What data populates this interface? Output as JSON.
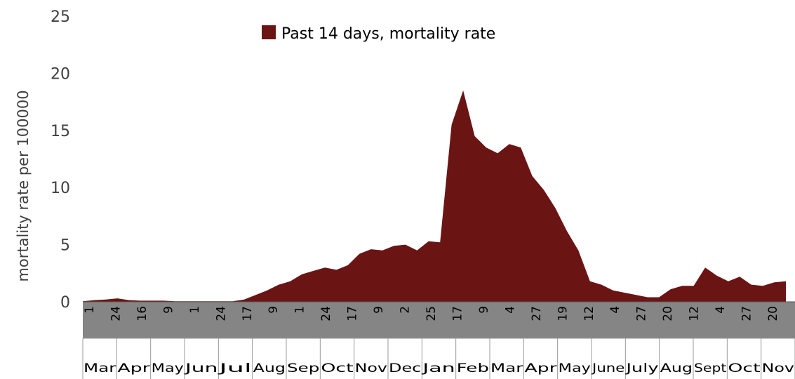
{
  "chart_data": {
    "type": "area",
    "ylabel": "mortality rate per 100000",
    "ylim": [
      0,
      25
    ],
    "yticks": [
      "0",
      "5",
      "10",
      "15",
      "20",
      "25"
    ],
    "legend": {
      "position": "top-center"
    },
    "series": [
      {
        "name": "Past 14 days, mortality rate",
        "color": "#6b1414",
        "values": [
          0.05,
          0.15,
          0.2,
          0.3,
          0.15,
          0.1,
          0.1,
          0.1,
          0.05,
          0.05,
          0.05,
          0.05,
          0.05,
          0.05,
          0.2,
          0.6,
          1.0,
          1.5,
          1.8,
          2.4,
          2.7,
          3.0,
          2.8,
          3.2,
          4.2,
          4.6,
          4.5,
          4.9,
          5.0,
          4.5,
          5.3,
          5.2,
          15.5,
          18.5,
          14.5,
          13.5,
          13.0,
          13.8,
          13.5,
          11.0,
          9.8,
          8.2,
          6.2,
          4.5,
          1.8,
          1.5,
          1.0,
          0.8,
          0.6,
          0.4,
          0.4,
          1.1,
          1.4,
          1.4,
          3.0,
          2.3,
          1.8,
          2.2,
          1.5,
          1.4,
          1.7,
          1.8
        ]
      }
    ],
    "day_ticks": [
      "1",
      "24",
      "16",
      "9",
      "1",
      "24",
      "17",
      "9",
      "1",
      "24",
      "17",
      "9",
      "2",
      "25",
      "17",
      "9",
      "4",
      "27",
      "19",
      "12",
      "4",
      "27",
      "20",
      "12",
      "4",
      "27",
      "20"
    ],
    "month_ticks": [
      "Mar",
      "Apr",
      "May",
      "Jun",
      "Jul",
      "Aug",
      "Sep",
      "Oct",
      "Nov",
      "Dec",
      "Jan",
      "Feb",
      "Mar",
      "Apr",
      "May",
      "June",
      "July",
      "Aug",
      "Sept",
      "Oct",
      "Nov"
    ]
  }
}
